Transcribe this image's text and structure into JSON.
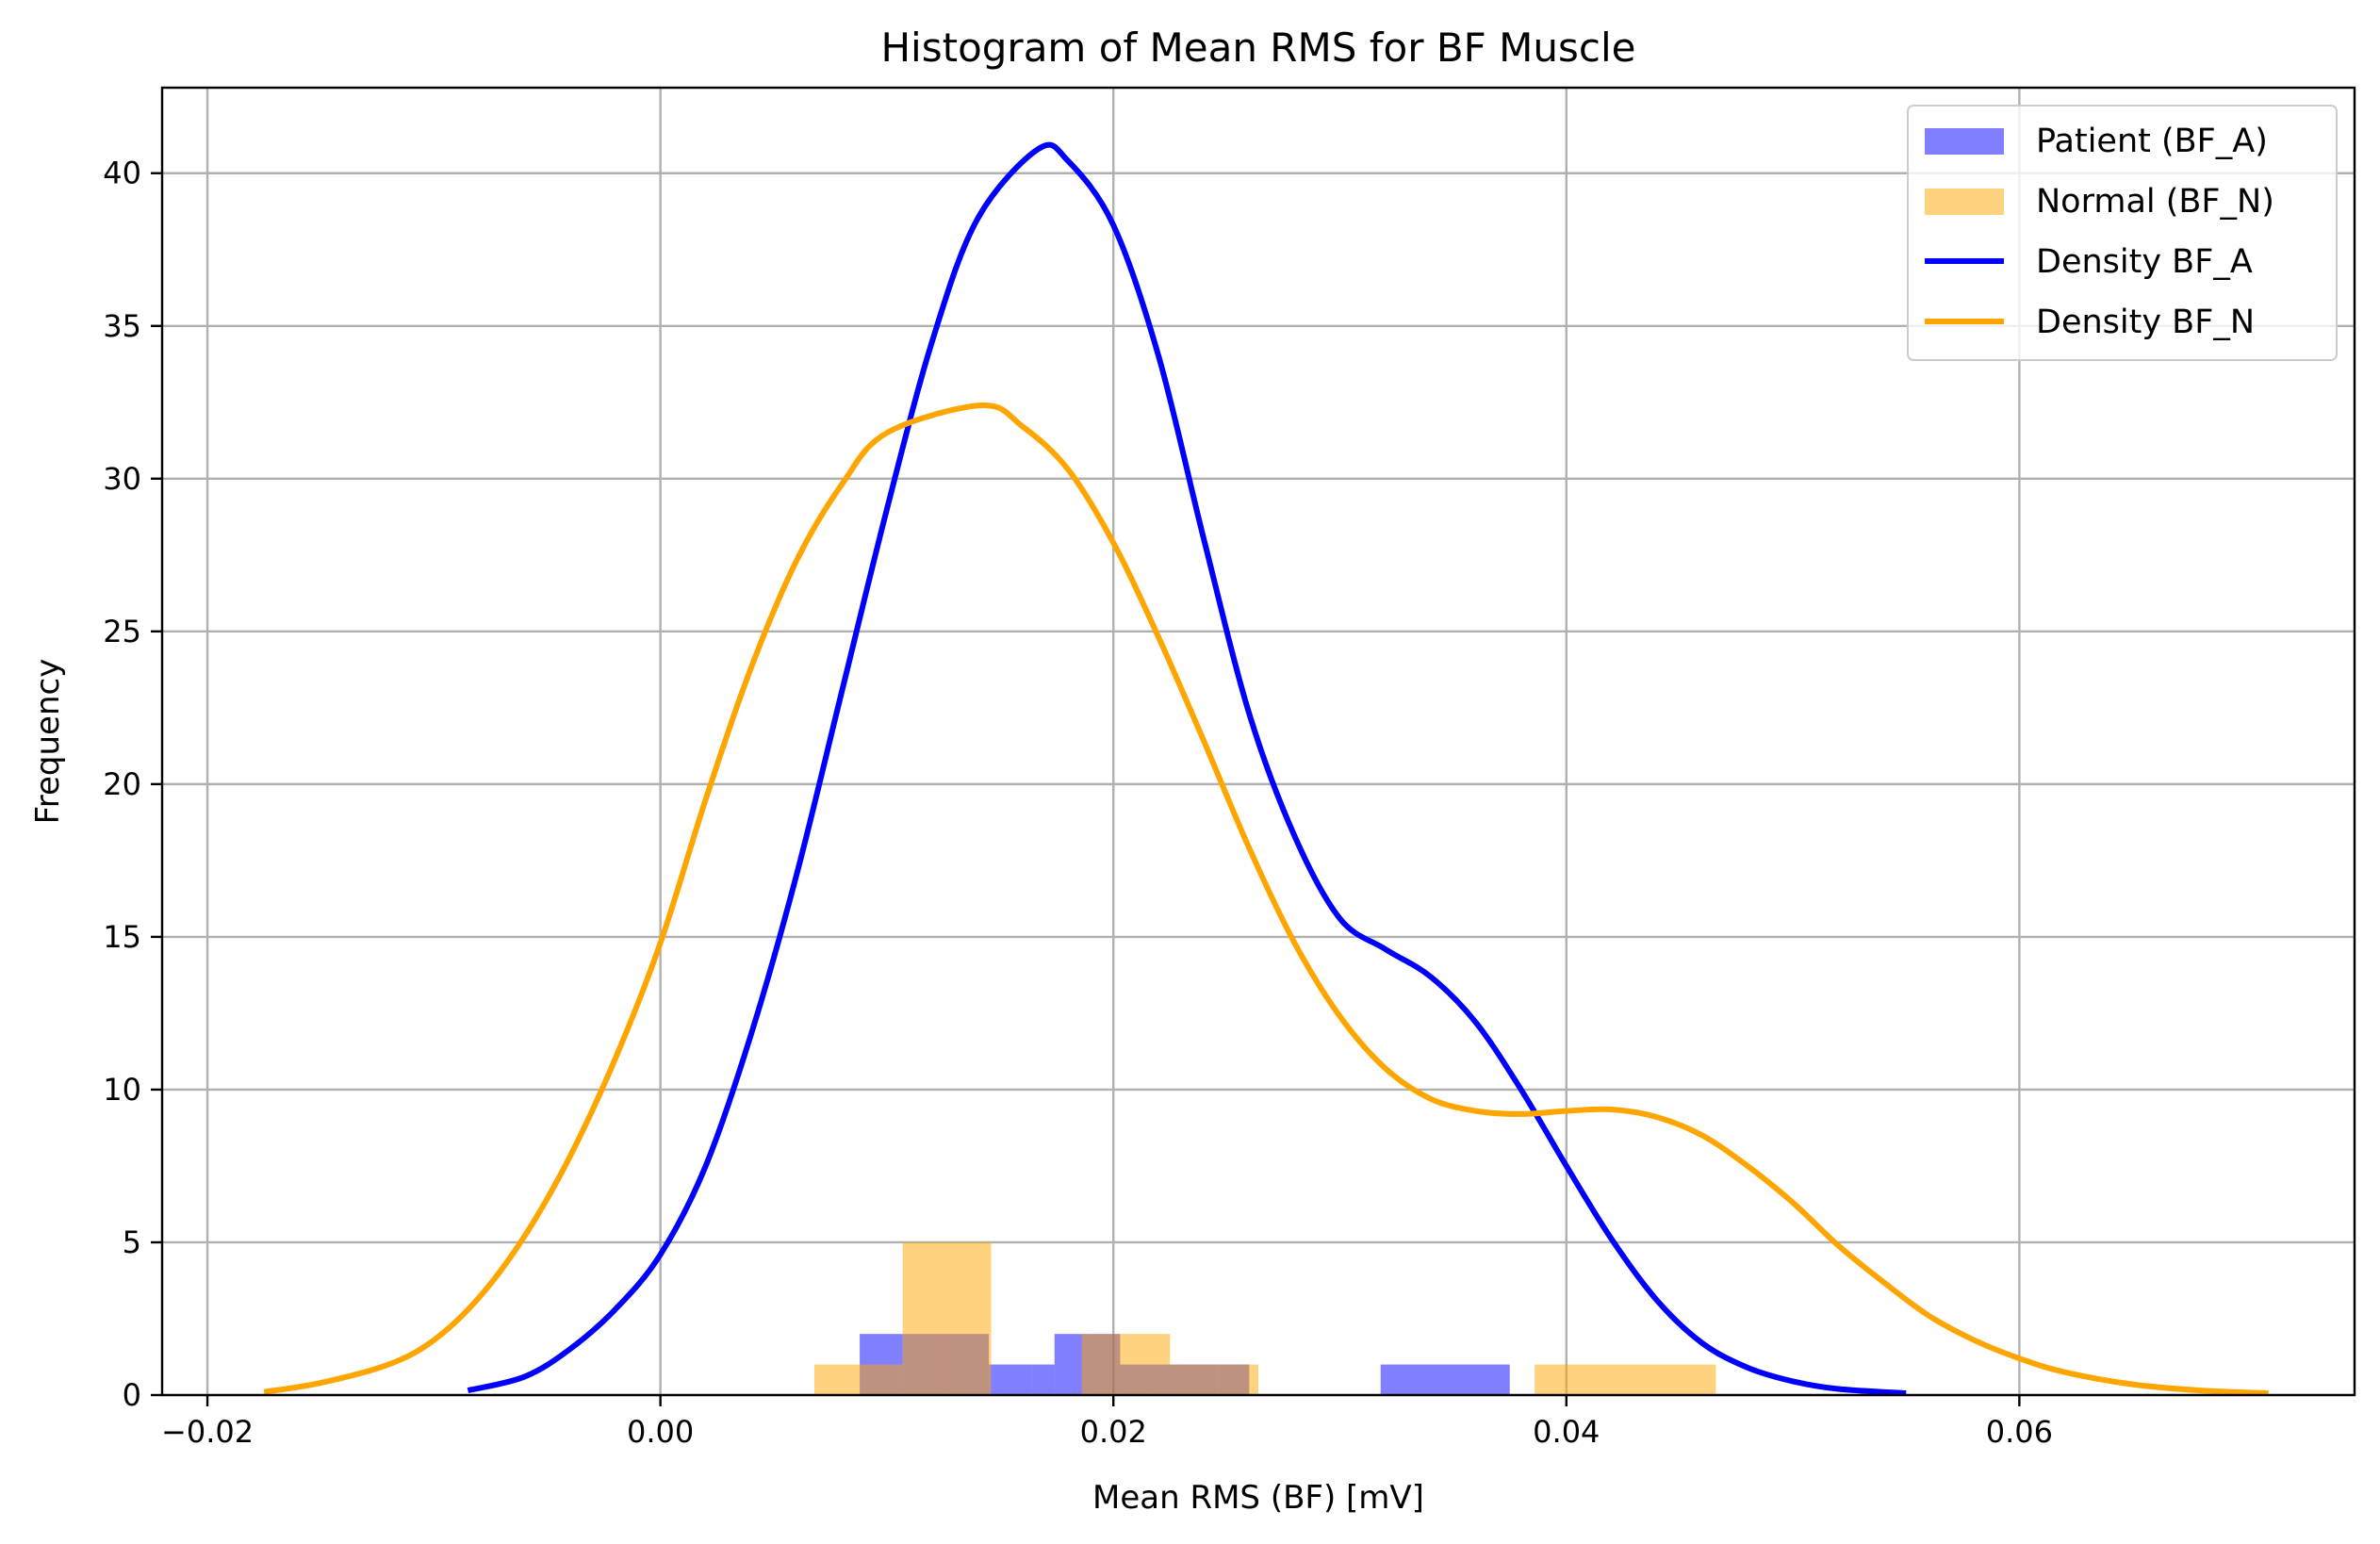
{
  "chart_data": {
    "type": "histogram",
    "title": "Histogram of Mean RMS for BF Muscle",
    "xlabel": "Mean RMS (BF) [mV]",
    "ylabel": "Frequency",
    "xlim": [
      -0.022,
      0.0748
    ],
    "ylim": [
      0,
      42.8
    ],
    "xticks": [
      -0.02,
      0.0,
      0.02,
      0.04,
      0.06
    ],
    "xtick_labels": [
      "−0.02",
      "0.00",
      "0.02",
      "0.04",
      "0.06"
    ],
    "yticks": [
      0,
      5,
      10,
      15,
      20,
      25,
      30,
      35,
      40
    ],
    "ytick_labels": [
      "0",
      "5",
      "10",
      "15",
      "20",
      "25",
      "30",
      "35",
      "40"
    ],
    "grid": true,
    "legend_position": "top-right",
    "colors": {
      "patient_hist": "#0000ff",
      "normal_hist": "#ffa500",
      "patient_density": "#0000ff",
      "normal_density": "#ffa500",
      "axis": "#000000",
      "grid": "#b0b0b0"
    },
    "histograms": [
      {
        "name": "Patient (BF_A)",
        "color": "#0000ff",
        "opacity": 0.5,
        "bins": [
          {
            "x0": 0.0088,
            "x1": 0.0107,
            "count": 2
          },
          {
            "x0": 0.0107,
            "x1": 0.0126,
            "count": 2
          },
          {
            "x0": 0.0126,
            "x1": 0.0145,
            "count": 2
          },
          {
            "x0": 0.0145,
            "x1": 0.0164,
            "count": 1
          },
          {
            "x0": 0.0164,
            "x1": 0.0174,
            "count": 1
          },
          {
            "x0": 0.0174,
            "x1": 0.0188,
            "count": 2
          },
          {
            "x0": 0.0188,
            "x1": 0.0203,
            "count": 2
          },
          {
            "x0": 0.0203,
            "x1": 0.0217,
            "count": 1
          },
          {
            "x0": 0.0217,
            "x1": 0.0246,
            "count": 1
          },
          {
            "x0": 0.0246,
            "x1": 0.026,
            "count": 1
          },
          {
            "x0": 0.0318,
            "x1": 0.0375,
            "count": 1
          }
        ]
      },
      {
        "name": "Normal (BF_N)",
        "color": "#ffa500",
        "opacity": 0.5,
        "bins": [
          {
            "x0": 0.0068,
            "x1": 0.0088,
            "count": 1
          },
          {
            "x0": 0.0088,
            "x1": 0.0107,
            "count": 1
          },
          {
            "x0": 0.0107,
            "x1": 0.0146,
            "count": 5
          },
          {
            "x0": 0.0186,
            "x1": 0.0205,
            "count": 2
          },
          {
            "x0": 0.0205,
            "x1": 0.0225,
            "count": 2
          },
          {
            "x0": 0.0225,
            "x1": 0.0264,
            "count": 1
          },
          {
            "x0": 0.0386,
            "x1": 0.0466,
            "count": 1
          }
        ]
      }
    ],
    "series": [
      {
        "name": "Density BF_A",
        "color": "#0000ff",
        "points": [
          [
            -0.0085,
            0.15
          ],
          [
            -0.006,
            0.6
          ],
          [
            -0.004,
            1.5
          ],
          [
            -0.002,
            2.8
          ],
          [
            0.0,
            4.6
          ],
          [
            0.002,
            7.5
          ],
          [
            0.004,
            11.8
          ],
          [
            0.006,
            17.0
          ],
          [
            0.008,
            23.0
          ],
          [
            0.01,
            29.0
          ],
          [
            0.012,
            34.5
          ],
          [
            0.014,
            38.5
          ],
          [
            0.0167,
            40.8
          ],
          [
            0.018,
            40.4
          ],
          [
            0.02,
            38.3
          ],
          [
            0.022,
            34.0
          ],
          [
            0.024,
            28.0
          ],
          [
            0.026,
            22.3
          ],
          [
            0.028,
            18.3
          ],
          [
            0.03,
            15.6
          ],
          [
            0.032,
            14.6
          ],
          [
            0.034,
            13.7
          ],
          [
            0.036,
            12.2
          ],
          [
            0.038,
            10.0
          ],
          [
            0.04,
            7.5
          ],
          [
            0.042,
            5.1
          ],
          [
            0.044,
            3.1
          ],
          [
            0.046,
            1.7
          ],
          [
            0.048,
            0.9
          ],
          [
            0.05,
            0.45
          ],
          [
            0.052,
            0.2
          ],
          [
            0.055,
            0.06
          ]
        ]
      },
      {
        "name": "Density BF_N",
        "color": "#ffa500",
        "points": [
          [
            -0.0175,
            0.1
          ],
          [
            -0.015,
            0.4
          ],
          [
            -0.012,
            1.0
          ],
          [
            -0.01,
            1.8
          ],
          [
            -0.008,
            3.2
          ],
          [
            -0.006,
            5.2
          ],
          [
            -0.004,
            7.8
          ],
          [
            -0.002,
            11.0
          ],
          [
            0.0,
            14.8
          ],
          [
            0.002,
            19.5
          ],
          [
            0.004,
            23.8
          ],
          [
            0.006,
            27.3
          ],
          [
            0.008,
            29.8
          ],
          [
            0.01,
            31.5
          ],
          [
            0.0142,
            32.4
          ],
          [
            0.016,
            31.7
          ],
          [
            0.018,
            30.3
          ],
          [
            0.02,
            27.9
          ],
          [
            0.022,
            24.8
          ],
          [
            0.024,
            21.4
          ],
          [
            0.026,
            17.9
          ],
          [
            0.028,
            14.8
          ],
          [
            0.03,
            12.4
          ],
          [
            0.032,
            10.7
          ],
          [
            0.034,
            9.7
          ],
          [
            0.036,
            9.3
          ],
          [
            0.038,
            9.2
          ],
          [
            0.04,
            9.3
          ],
          [
            0.042,
            9.35
          ],
          [
            0.044,
            9.1
          ],
          [
            0.046,
            8.5
          ],
          [
            0.048,
            7.5
          ],
          [
            0.05,
            6.3
          ],
          [
            0.052,
            4.9
          ],
          [
            0.054,
            3.7
          ],
          [
            0.056,
            2.6
          ],
          [
            0.058,
            1.8
          ],
          [
            0.06,
            1.2
          ],
          [
            0.062,
            0.75
          ],
          [
            0.065,
            0.35
          ],
          [
            0.068,
            0.15
          ],
          [
            0.071,
            0.06
          ]
        ]
      }
    ],
    "legend": [
      {
        "label": "Patient (BF_A)",
        "kind": "patch",
        "color": "#0000ff"
      },
      {
        "label": "Normal (BF_N)",
        "kind": "patch",
        "color": "#ffa500"
      },
      {
        "label": "Density BF_A",
        "kind": "line",
        "color": "#0000ff"
      },
      {
        "label": "Density BF_N",
        "kind": "line",
        "color": "#ffa500"
      }
    ]
  }
}
